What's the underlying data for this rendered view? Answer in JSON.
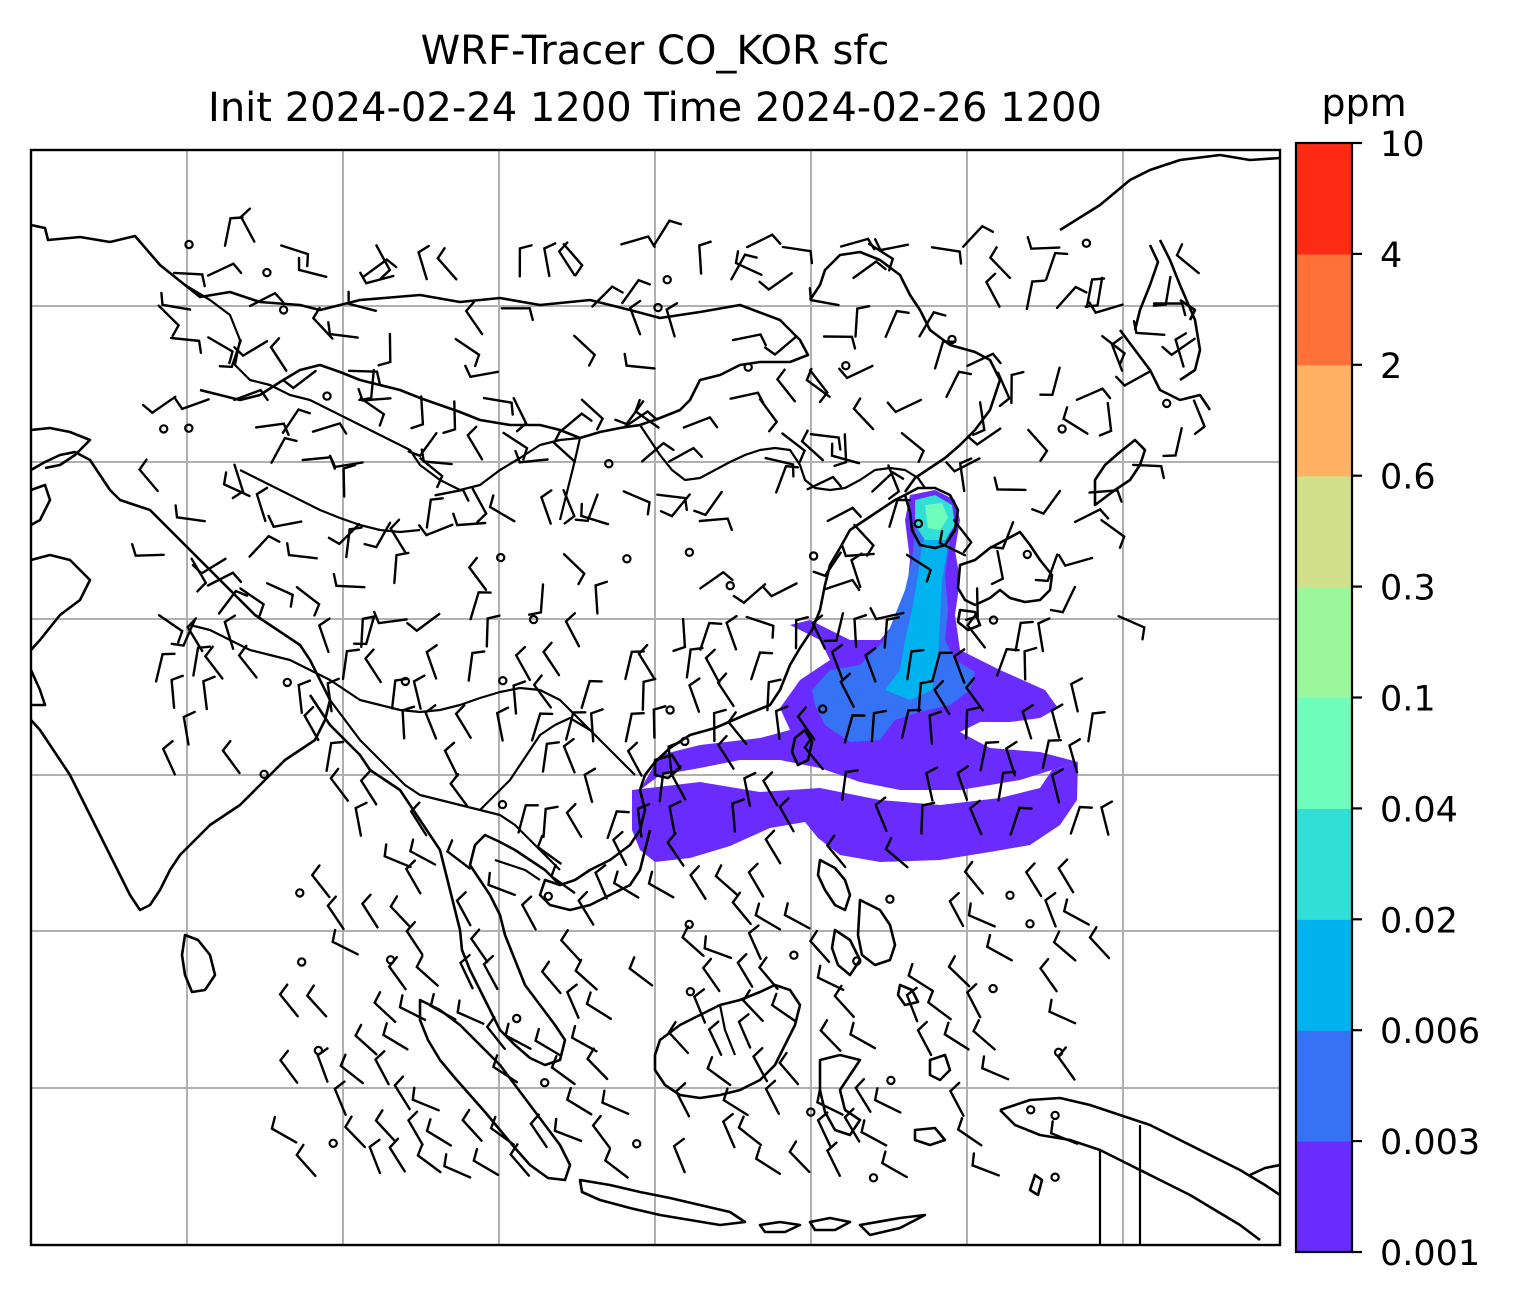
{
  "chart_data": {
    "type": "contour-map",
    "title": "WRF-Tracer CO_KOR sfc",
    "subtitle": "Init 2024-02-24 1200 Time 2024-02-26 1200",
    "colorbar": {
      "unit": "ppm",
      "levels": [
        "0.001",
        "0.003",
        "0.006",
        "0.02",
        "0.04",
        "0.1",
        "0.3",
        "0.6",
        "2",
        "4",
        "10"
      ],
      "colors": [
        "#6a2bff",
        "#3573f4",
        "#00b3ef",
        "#31dfd6",
        "#6ffdbd",
        "#9bf79b",
        "#d3e08a",
        "#ffb261",
        "#ff7138",
        "#ff2a14"
      ]
    },
    "grid": true,
    "overlays": [
      "coastlines",
      "country-borders",
      "wind-barbs"
    ],
    "map_colors": {
      "frame": "#000000",
      "gridline": "#b0b0b0",
      "coastline": "#000000"
    }
  }
}
